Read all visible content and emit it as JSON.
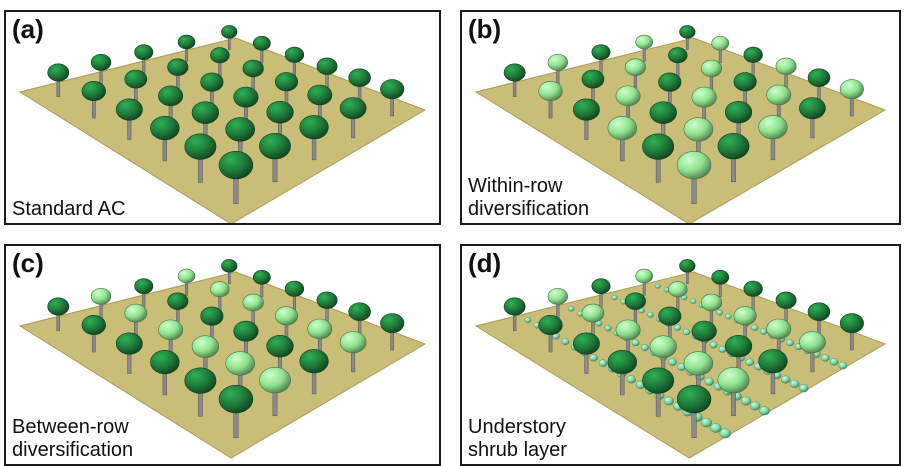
{
  "panels": [
    {
      "label": "(a)",
      "caption": [
        "Standard AC"
      ],
      "variant": "standard"
    },
    {
      "label": "(b)",
      "caption": [
        "Within-row",
        "diversification"
      ],
      "variant": "within"
    },
    {
      "label": "(c)",
      "caption": [
        "Between-row",
        "diversification"
      ],
      "variant": "between"
    },
    {
      "label": "(d)",
      "caption": [
        "Understory",
        "shrub layer"
      ],
      "variant": "shrub"
    }
  ],
  "colors": {
    "ground": "#c9be78",
    "ground_edge": "#a89c55",
    "dark_tree": "#1f7a3a",
    "light_tree": "#8ee28e",
    "shrub": "#7fd6a0",
    "trunk": "#8a8a8a"
  }
}
